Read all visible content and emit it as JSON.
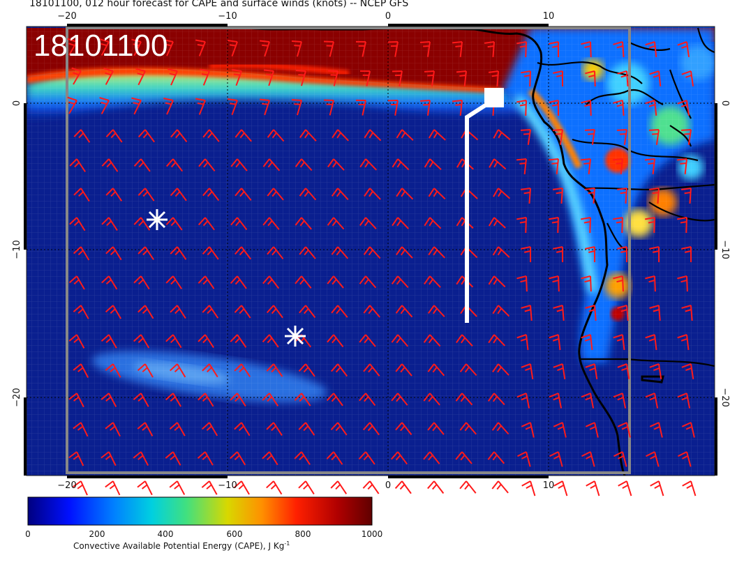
{
  "title": "18101100, 012 hour forecast for CAPE and surface winds (knots) -- NCEP GFS",
  "stamp": "18101100",
  "colors": {
    "ocean_low": "#0a1f8f",
    "cape_high": "#7a0000",
    "barb": "#ff1a1a",
    "coast": "#000000",
    "marker": "#ffffff",
    "frame_gray": "#888888"
  },
  "axes": {
    "x_ticks": [
      "−20",
      "−10",
      "0",
      "10"
    ],
    "y_ticks": [
      "0",
      "−10",
      "−20"
    ]
  },
  "colorbar": {
    "ticks": [
      "0",
      "200",
      "400",
      "600",
      "800",
      "1000"
    ],
    "label_main": "Convective Available Potential Energy (CAPE), J Kg",
    "label_sup": "-1",
    "colors": [
      "#000080",
      "#0000ff",
      "#00bfff",
      "#00e0c0",
      "#80e060",
      "#e0e000",
      "#ff9900",
      "#ff2000",
      "#b00000",
      "#600000"
    ]
  },
  "markers": [
    {
      "type": "asterisk",
      "name": "marker-star-west"
    },
    {
      "type": "asterisk",
      "name": "marker-star-south"
    },
    {
      "type": "square",
      "name": "marker-square"
    }
  ],
  "icons": {
    "wind_barb": "wind-barb-icon",
    "star": "asterisk-icon"
  }
}
